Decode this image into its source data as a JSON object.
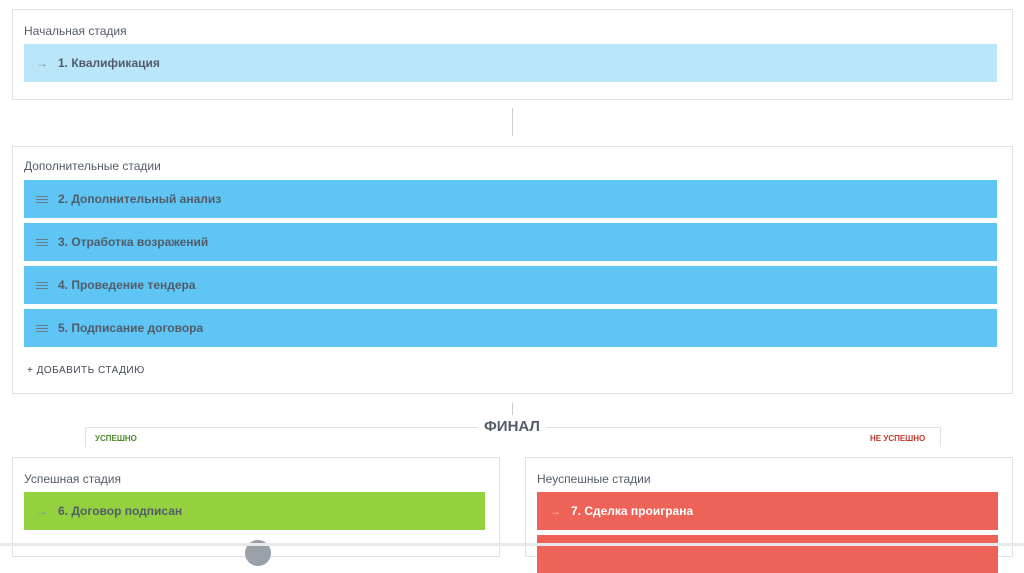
{
  "initial": {
    "title": "Начальная стадия",
    "stage": "1. Квалификация"
  },
  "additional": {
    "title": "Дополнительные стадии",
    "stages": [
      "2. Дополнительный анализ",
      "3. Отработка возражений",
      "4. Проведение тендера",
      "5. Подписание договора"
    ],
    "add_label": "+ ДОБАВИТЬ СТАДИЮ"
  },
  "final": {
    "title": "ФИНАЛ",
    "success_label": "УСПЕШНО",
    "fail_label": "НЕ УСПЕШНО",
    "success": {
      "title": "Успешная стадия",
      "stage": "6. Договор подписан"
    },
    "fail": {
      "title": "Неуспешные стадии",
      "stage": "7. Сделка проиграна"
    }
  },
  "colors": {
    "initial": "#b9e6f8",
    "additional": "#5ec5f4",
    "success": "#94d13f",
    "fail": "#ee6358"
  }
}
